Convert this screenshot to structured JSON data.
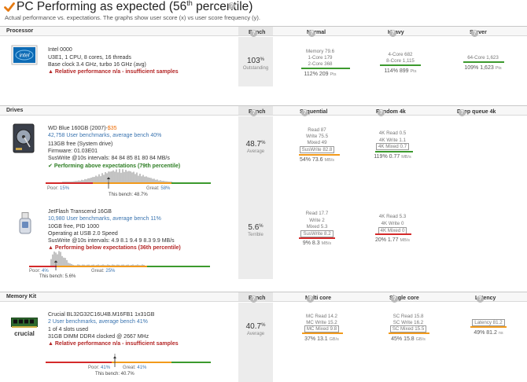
{
  "header": {
    "title_main": "PC Performing as expected (56",
    "title_sup": "th",
    "title_end": " percentile)",
    "subtitle": "Actual performance vs. expectations. The graphs show user score (x) vs user score frequency (y)."
  },
  "processor": {
    "section_label": "Processor",
    "bench_label": "Bench",
    "col_normal": "Normal",
    "col_heavy": "Heavy",
    "col_server": "Server",
    "name": "Intel 0000",
    "line1": "U3E1, 1 CPU, 8 cores, 16 threads",
    "line2": "Base clock 3.4 GHz, turbo 16 GHz (avg)",
    "warning": "Relative performance n/a - insufficient samples",
    "bench_value": "103",
    "bench_unit": "%",
    "bench_caption": "Outstanding",
    "normal": {
      "lines": [
        "Memory 79.6",
        "1-Core 179",
        "2-Core 368"
      ],
      "value": "112% 209",
      "unit": "Pts"
    },
    "heavy": {
      "lines": [
        "4-Core 682",
        "8-Core 1,115"
      ],
      "value": "114% 899",
      "unit": "Pts"
    },
    "server": {
      "lines": [
        "64-Core 1,623"
      ],
      "value": "109% 1,623",
      "unit": "Pts"
    }
  },
  "drives": {
    "section_label": "Drives",
    "bench_label": "Bench",
    "col_seq": "Sequential",
    "col_rand": "Random 4k",
    "col_deep": "Deep queue 4k",
    "items": [
      {
        "name": "WD Blue 160GB (2007)-",
        "price": "$35",
        "benchmarks": "42,758 User benchmarks, average bench 40%",
        "line1": "113GB free (System drive)",
        "line2": "Firmware: 01.03E01",
        "line3": "SusWrite @10s intervals: 84 84 85 81 80 84 MB/s",
        "status": "Performing above expectations (79th percentile)",
        "poor_label": "Poor:",
        "poor_value": "15%",
        "great_label": "Great:",
        "great_value": "58%",
        "this_bench": "This bench: 48.7%",
        "bench_value": "48.7",
        "bench_unit": "%",
        "bench_caption": "Average",
        "seq": {
          "lines": [
            "Read 87",
            "Write 75.5",
            "Mixed 49",
            "SusWrite 82.8"
          ],
          "value": "54% 73.6",
          "unit": "MB/s"
        },
        "rand": {
          "lines": [
            "4K Read 0.5",
            "4K Write 1.1",
            "4K Mixed 0.7"
          ],
          "value": "119% 0.77",
          "unit": "MB/s"
        }
      },
      {
        "name": "JetFlash Transcend 16GB",
        "benchmarks": "10,980 User benchmarks, average bench 11%",
        "line1": "10GB free, PID 1000",
        "line2": "Operating at USB 2.0 Speed",
        "line3": "SusWrite @10s intervals: 4.9 8.1 9.4 9 8.3 9.9 MB/s",
        "status": "Performing below expectations (36th percentile)",
        "poor_label": "Poor:",
        "poor_value": "4%",
        "great_label": "Great:",
        "great_value": "25%",
        "this_bench": "This bench: 5.6%",
        "bench_value": "5.6",
        "bench_unit": "%",
        "bench_caption": "Terrible",
        "seq": {
          "lines": [
            "Read 17.7",
            "Write 2",
            "Mixed 5.3",
            "SusWrite 8.2"
          ],
          "value": "9% 8.3",
          "unit": "MB/s"
        },
        "rand": {
          "lines": [
            "4K Read 5.3",
            "4K Write 0",
            "4K Mixed 0"
          ],
          "value": "20% 1.77",
          "unit": "MB/s"
        }
      }
    ]
  },
  "memory": {
    "section_label": "Memory Kit",
    "bench_label": "Bench",
    "col_multi": "Multi core",
    "col_single": "Single core",
    "col_latency": "Latency",
    "name": "Crucial BL32G32C16U4B.M16FB1 1x31GB",
    "benchmarks": "2 User benchmarks, average bench 41%",
    "line1": "1 of 4 slots used",
    "line2": "31GB DIMM DDR4 clocked @ 2667 MHz",
    "warning": "Relative performance n/a - insufficient samples",
    "poor_label": "Poor:",
    "poor_value": "41%",
    "great_label": "Great:",
    "great_value": "41%",
    "this_bench": "This bench: 40.7%",
    "bench_value": "40.7",
    "bench_unit": "%",
    "bench_caption": "Average",
    "multi": {
      "lines": [
        "MC Read 14.2",
        "MC Write 15.2",
        "MC Mixed 9.8"
      ],
      "value": "37% 13.1",
      "unit": "GB/s"
    },
    "single": {
      "lines": [
        "SC Read 15.8",
        "SC Write 16.2",
        "SC Mixed 15.5"
      ],
      "value": "45% 15.8",
      "unit": "GB/s"
    },
    "latency": {
      "lines": [
        "Latency 81.2"
      ],
      "value": "49% 81.2",
      "unit": "ns"
    },
    "logo_text": "crucial"
  },
  "colors": {
    "green": "#3c9a2e",
    "orange": "#f29a1b",
    "red": "#d42a2a",
    "link": "#3a74b0"
  },
  "icons": [
    "check-icon",
    "help-icon",
    "intel-logo",
    "hdd-icon",
    "usb-flash-icon",
    "ram-stick-icon"
  ]
}
